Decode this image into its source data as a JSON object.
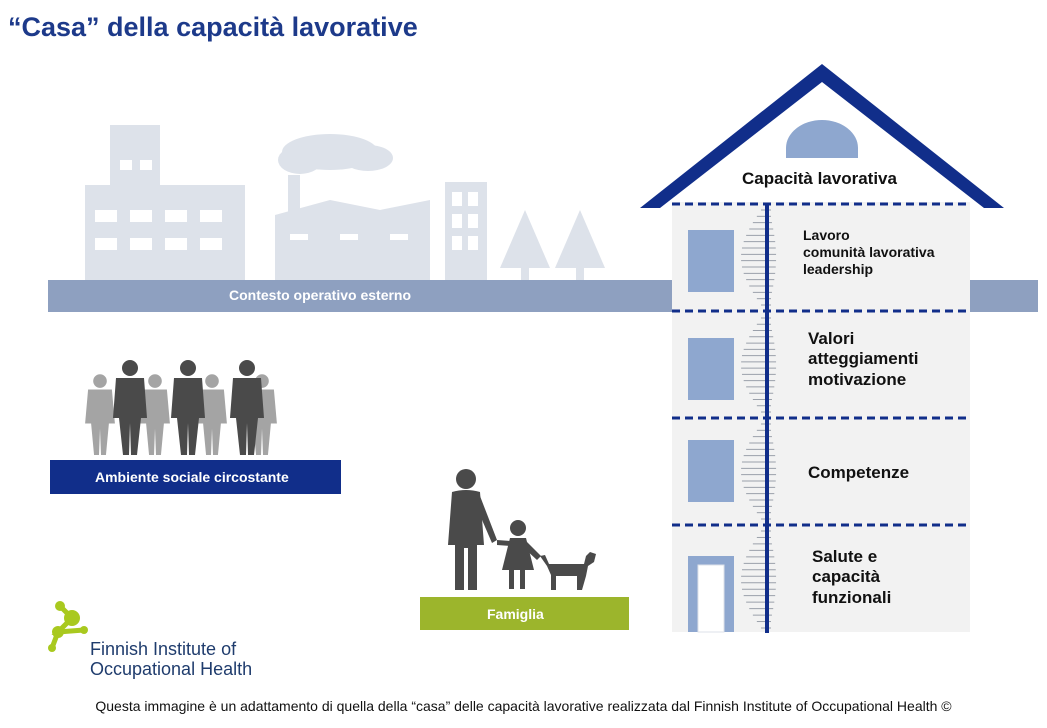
{
  "title": "“Casa” della capacità lavorative",
  "external_context_label": "Contesto operativo esterno",
  "social_environment_label": "Ambiente sociale circostante",
  "family_label": "Famiglia",
  "house": {
    "roof_label": "Capacità lavorativa",
    "floors": [
      {
        "lines": [
          "Lavoro",
          "comunità lavorativa",
          "leadership"
        ]
      },
      {
        "lines": [
          "Valori",
          "atteggiamenti",
          "motivazione"
        ]
      },
      {
        "lines": [
          "Competenze"
        ]
      },
      {
        "lines": [
          "Salute e",
          "capacità",
          "funzionali"
        ]
      }
    ]
  },
  "logo": {
    "line1": "Finnish Institute of",
    "line2": "Occupational Health"
  },
  "caption": "Questa immagine è un adattamento di quella della “casa” delle capacità lavorative realizzata dal Finnish Institute of Occupational Health ©",
  "colors": {
    "title": "#1d3a8a",
    "navy": "#112e8a",
    "ground_bar": "#8ea0c0",
    "city": "#dde2ea",
    "window_blue": "#8ea7cf",
    "family_green": "#9cb52c",
    "people_dark": "#4a4a4a",
    "people_light": "#a4a4a4",
    "logo_green": "#a9c91f"
  }
}
